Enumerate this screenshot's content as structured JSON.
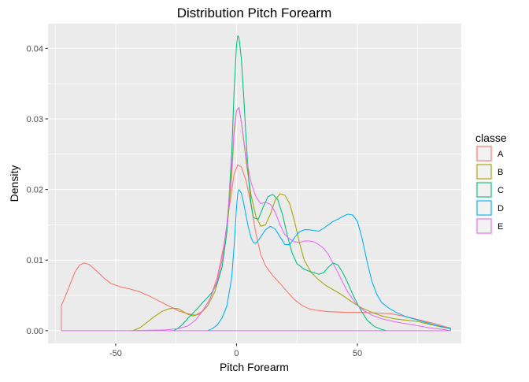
{
  "chart_data": {
    "type": "line",
    "title": "Distribution Pitch Forearm",
    "xlabel": "Pitch Forearm",
    "ylabel": "Density",
    "xlim": [
      -78,
      93
    ],
    "ylim": [
      -0.0018,
      0.0435
    ],
    "xticks": [
      -50,
      0,
      50
    ],
    "xtick_labels": [
      "-50",
      "0",
      "50"
    ],
    "yticks": [
      0,
      0.01,
      0.02,
      0.03,
      0.04
    ],
    "ytick_labels": [
      "0.00",
      "0.01",
      "0.02",
      "0.03",
      "0.04"
    ],
    "grid": true,
    "legend_title": "classe",
    "legend_position": "right",
    "series": [
      {
        "name": "A",
        "color": "#f8766d",
        "points": [
          [
            -72.5,
            0
          ],
          [
            -72.5,
            0.0035
          ],
          [
            -70,
            0.0056
          ],
          [
            -67,
            0.0082
          ],
          [
            -65,
            0.0093
          ],
          [
            -63,
            0.0096
          ],
          [
            -61,
            0.0094
          ],
          [
            -58,
            0.0085
          ],
          [
            -55,
            0.0075
          ],
          [
            -52,
            0.0067
          ],
          [
            -48,
            0.0062
          ],
          [
            -44,
            0.0059
          ],
          [
            -40,
            0.0055
          ],
          [
            -36,
            0.0049
          ],
          [
            -32,
            0.0042
          ],
          [
            -28,
            0.0035
          ],
          [
            -24,
            0.0028
          ],
          [
            -20,
            0.0024
          ],
          [
            -17,
            0.0022
          ],
          [
            -14,
            0.0028
          ],
          [
            -11,
            0.0045
          ],
          [
            -8,
            0.0075
          ],
          [
            -5,
            0.0125
          ],
          [
            -3,
            0.0175
          ],
          [
            -1,
            0.0222
          ],
          [
            0.5,
            0.0235
          ],
          [
            2,
            0.0232
          ],
          [
            4,
            0.0212
          ],
          [
            6,
            0.0178
          ],
          [
            8,
            0.0138
          ],
          [
            10,
            0.0108
          ],
          [
            12,
            0.0092
          ],
          [
            15,
            0.0078
          ],
          [
            18,
            0.0067
          ],
          [
            21,
            0.0055
          ],
          [
            24,
            0.0044
          ],
          [
            27,
            0.0036
          ],
          [
            30,
            0.0031
          ],
          [
            33,
            0.0029
          ],
          [
            38,
            0.0027
          ],
          [
            45,
            0.0026
          ],
          [
            52,
            0.0026
          ],
          [
            58,
            0.0025
          ],
          [
            64,
            0.0024
          ],
          [
            70,
            0.002
          ],
          [
            76,
            0.0015
          ],
          [
            82,
            0.001
          ],
          [
            86,
            0.0006
          ],
          [
            88.5,
            0.0004
          ],
          [
            88.5,
            0
          ]
        ]
      },
      {
        "name": "B",
        "color": "#a3a500",
        "points": [
          [
            -43,
            0
          ],
          [
            -40,
            0.0004
          ],
          [
            -37,
            0.0012
          ],
          [
            -34,
            0.002
          ],
          [
            -31,
            0.0027
          ],
          [
            -28,
            0.0031
          ],
          [
            -26,
            0.0032
          ],
          [
            -24,
            0.0031
          ],
          [
            -22,
            0.0027
          ],
          [
            -20,
            0.0023
          ],
          [
            -18,
            0.0021
          ],
          [
            -15,
            0.0024
          ],
          [
            -12,
            0.0035
          ],
          [
            -9,
            0.0055
          ],
          [
            -6,
            0.009
          ],
          [
            -4,
            0.014
          ],
          [
            -2,
            0.022
          ],
          [
            -1,
            0.028
          ],
          [
            0,
            0.0312
          ],
          [
            1,
            0.0316
          ],
          [
            2,
            0.0296
          ],
          [
            4,
            0.024
          ],
          [
            6,
            0.0192
          ],
          [
            8,
            0.0162
          ],
          [
            10,
            0.0148
          ],
          [
            12,
            0.015
          ],
          [
            14,
            0.0165
          ],
          [
            16,
            0.0185
          ],
          [
            18,
            0.0194
          ],
          [
            20,
            0.0192
          ],
          [
            22,
            0.018
          ],
          [
            24,
            0.0155
          ],
          [
            26,
            0.0125
          ],
          [
            28,
            0.01
          ],
          [
            31,
            0.0082
          ],
          [
            34,
            0.0072
          ],
          [
            37,
            0.0064
          ],
          [
            40,
            0.0058
          ],
          [
            43,
            0.0052
          ],
          [
            46,
            0.0045
          ],
          [
            49,
            0.0038
          ],
          [
            52,
            0.0032
          ],
          [
            56,
            0.0026
          ],
          [
            60,
            0.0021
          ],
          [
            65,
            0.0017
          ],
          [
            70,
            0.0015
          ],
          [
            75,
            0.0013
          ],
          [
            80,
            0.0009
          ],
          [
            85,
            0.0005
          ],
          [
            88.5,
            0.0003
          ],
          [
            88.5,
            0
          ]
        ]
      },
      {
        "name": "C",
        "color": "#00bf7d",
        "points": [
          [
            -26,
            0
          ],
          [
            -24,
            0.0004
          ],
          [
            -22,
            0.001
          ],
          [
            -20,
            0.0018
          ],
          [
            -18,
            0.0025
          ],
          [
            -16,
            0.0032
          ],
          [
            -14,
            0.004
          ],
          [
            -12,
            0.0047
          ],
          [
            -10,
            0.0055
          ],
          [
            -8,
            0.0067
          ],
          [
            -6,
            0.009
          ],
          [
            -4,
            0.014
          ],
          [
            -2,
            0.025
          ],
          [
            -1,
            0.034
          ],
          [
            0,
            0.0405
          ],
          [
            0.5,
            0.0418
          ],
          [
            1,
            0.0415
          ],
          [
            2,
            0.0385
          ],
          [
            3,
            0.033
          ],
          [
            4,
            0.027
          ],
          [
            5,
            0.0215
          ],
          [
            6,
            0.018
          ],
          [
            7,
            0.016
          ],
          [
            9,
            0.0158
          ],
          [
            11,
            0.0175
          ],
          [
            13,
            0.019
          ],
          [
            15,
            0.0193
          ],
          [
            17,
            0.0186
          ],
          [
            19,
            0.0165
          ],
          [
            21,
            0.0135
          ],
          [
            23,
            0.011
          ],
          [
            25,
            0.0095
          ],
          [
            28,
            0.0087
          ],
          [
            31,
            0.0083
          ],
          [
            34,
            0.008
          ],
          [
            36,
            0.0082
          ],
          [
            38,
            0.009
          ],
          [
            40,
            0.0096
          ],
          [
            42,
            0.0093
          ],
          [
            44,
            0.0082
          ],
          [
            46,
            0.0068
          ],
          [
            48,
            0.0052
          ],
          [
            50,
            0.0038
          ],
          [
            52,
            0.0026
          ],
          [
            54,
            0.0015
          ],
          [
            57,
            0.0006
          ],
          [
            60,
            0.0002
          ],
          [
            62,
            0
          ]
        ]
      },
      {
        "name": "D",
        "color": "#00b0f6",
        "points": [
          [
            -12,
            0
          ],
          [
            -10,
            0.0003
          ],
          [
            -8,
            0.0008
          ],
          [
            -6,
            0.0018
          ],
          [
            -4,
            0.0035
          ],
          [
            -2,
            0.0075
          ],
          [
            -1,
            0.012
          ],
          [
            0,
            0.0175
          ],
          [
            0.5,
            0.0195
          ],
          [
            1,
            0.02
          ],
          [
            2,
            0.0195
          ],
          [
            3,
            0.018
          ],
          [
            4,
            0.0162
          ],
          [
            5,
            0.0145
          ],
          [
            6,
            0.0132
          ],
          [
            7,
            0.0125
          ],
          [
            8,
            0.0124
          ],
          [
            9,
            0.0128
          ],
          [
            10,
            0.0133
          ],
          [
            12,
            0.0143
          ],
          [
            14,
            0.0148
          ],
          [
            16,
            0.0144
          ],
          [
            18,
            0.0133
          ],
          [
            20,
            0.0122
          ],
          [
            22,
            0.0122
          ],
          [
            24,
            0.0132
          ],
          [
            26,
            0.014
          ],
          [
            28,
            0.0143
          ],
          [
            30,
            0.0143
          ],
          [
            32,
            0.0142
          ],
          [
            34,
            0.0141
          ],
          [
            36,
            0.0145
          ],
          [
            38,
            0.015
          ],
          [
            40,
            0.0155
          ],
          [
            42,
            0.0158
          ],
          [
            44,
            0.0162
          ],
          [
            46,
            0.0165
          ],
          [
            48,
            0.0164
          ],
          [
            50,
            0.0155
          ],
          [
            52,
            0.013
          ],
          [
            54,
            0.0098
          ],
          [
            56,
            0.007
          ],
          [
            58,
            0.0052
          ],
          [
            60,
            0.004
          ],
          [
            63,
            0.0032
          ],
          [
            66,
            0.0026
          ],
          [
            70,
            0.002
          ],
          [
            74,
            0.0016
          ],
          [
            78,
            0.0012
          ],
          [
            82,
            0.0008
          ],
          [
            86,
            0.0005
          ],
          [
            88.5,
            0.0003
          ],
          [
            88.5,
            0
          ]
        ]
      },
      {
        "name": "E",
        "color": "#e76bf3",
        "points": [
          [
            -72.5,
            0
          ],
          [
            -45,
            0
          ],
          [
            -30,
            0.0001
          ],
          [
            -24,
            0.0003
          ],
          [
            -20,
            0.0007
          ],
          [
            -17,
            0.0015
          ],
          [
            -14,
            0.0028
          ],
          [
            -11,
            0.0045
          ],
          [
            -8,
            0.007
          ],
          [
            -6,
            0.01
          ],
          [
            -4,
            0.015
          ],
          [
            -2,
            0.023
          ],
          [
            -1,
            0.0285
          ],
          [
            0,
            0.0312
          ],
          [
            1,
            0.0316
          ],
          [
            2,
            0.0296
          ],
          [
            4,
            0.0245
          ],
          [
            6,
            0.021
          ],
          [
            8,
            0.019
          ],
          [
            10,
            0.018
          ],
          [
            12,
            0.0182
          ],
          [
            14,
            0.0179
          ],
          [
            16,
            0.0168
          ],
          [
            18,
            0.015
          ],
          [
            20,
            0.0136
          ],
          [
            22,
            0.013
          ],
          [
            24,
            0.0126
          ],
          [
            26,
            0.0125
          ],
          [
            28,
            0.0127
          ],
          [
            30,
            0.0127
          ],
          [
            32,
            0.0126
          ],
          [
            34,
            0.0122
          ],
          [
            36,
            0.0117
          ],
          [
            38,
            0.0108
          ],
          [
            40,
            0.0095
          ],
          [
            42,
            0.0082
          ],
          [
            44,
            0.0068
          ],
          [
            46,
            0.0055
          ],
          [
            48,
            0.0045
          ],
          [
            50,
            0.0036
          ],
          [
            53,
            0.0028
          ],
          [
            56,
            0.0022
          ],
          [
            60,
            0.0017
          ],
          [
            65,
            0.0013
          ],
          [
            70,
            0.001
          ],
          [
            75,
            0.0007
          ],
          [
            80,
            0.0004
          ],
          [
            85,
            0.0002
          ],
          [
            88.5,
            0
          ],
          [
            -72.5,
            0
          ]
        ]
      }
    ]
  }
}
